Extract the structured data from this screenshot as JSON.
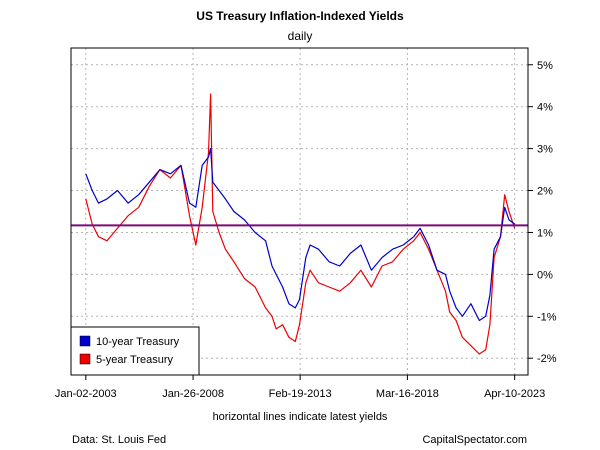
{
  "chart_data": {
    "type": "line",
    "title": "US Treasury Inflation-Indexed Yields",
    "subtitle": "daily",
    "xlabel": "horizontal lines indicate latest yields",
    "ylabel": "",
    "x_tick_labels": [
      "Jan-02-2003",
      "Jan-26-2008",
      "Feb-19-2013",
      "Mar-16-2018",
      "Apr-10-2023"
    ],
    "x_tick_values": [
      2003.0,
      2008.07,
      2013.13,
      2018.2,
      2023.27
    ],
    "xlim": [
      2002.3,
      2023.9
    ],
    "y_tick_labels": [
      "-2%",
      "-1%",
      "0%",
      "1%",
      "2%",
      "3%",
      "4%",
      "5%"
    ],
    "y_tick_values": [
      -2,
      -1,
      0,
      1,
      2,
      3,
      4,
      5
    ],
    "ylim": [
      -2.4,
      5.4
    ],
    "grid": true,
    "legend_position": "bottom-left",
    "series": [
      {
        "name": "10-year Treasury",
        "color": "#0000cc",
        "x": [
          2003.0,
          2003.3,
          2003.6,
          2004.0,
          2004.5,
          2005.0,
          2005.5,
          2006.0,
          2006.5,
          2007.0,
          2007.5,
          2007.9,
          2008.2,
          2008.5,
          2008.8,
          2008.9,
          2009.0,
          2009.3,
          2009.6,
          2010.0,
          2010.5,
          2011.0,
          2011.5,
          2011.8,
          2012.0,
          2012.3,
          2012.6,
          2012.9,
          2013.1,
          2013.4,
          2013.6,
          2014.0,
          2014.5,
          2015.0,
          2015.5,
          2016.0,
          2016.5,
          2017.0,
          2017.5,
          2018.0,
          2018.5,
          2018.8,
          2019.2,
          2019.6,
          2020.0,
          2020.2,
          2020.5,
          2020.8,
          2021.2,
          2021.6,
          2021.9,
          2022.1,
          2022.3,
          2022.6,
          2022.8,
          2023.0,
          2023.27
        ],
        "y": [
          2.4,
          2.0,
          1.7,
          1.8,
          2.0,
          1.7,
          1.9,
          2.2,
          2.5,
          2.4,
          2.6,
          1.7,
          1.6,
          2.6,
          2.8,
          3.0,
          2.2,
          2.0,
          1.8,
          1.5,
          1.3,
          1.0,
          0.8,
          0.2,
          0.0,
          -0.3,
          -0.7,
          -0.8,
          -0.6,
          0.4,
          0.7,
          0.6,
          0.3,
          0.2,
          0.5,
          0.7,
          0.1,
          0.4,
          0.6,
          0.7,
          0.9,
          1.1,
          0.7,
          0.1,
          0.0,
          -0.4,
          -0.8,
          -1.0,
          -0.7,
          -1.1,
          -1.0,
          -0.5,
          0.6,
          0.9,
          1.6,
          1.3,
          1.2
        ]
      },
      {
        "name": "5-year Treasury",
        "color": "#ee0000",
        "x": [
          2003.0,
          2003.3,
          2003.6,
          2004.0,
          2004.5,
          2005.0,
          2005.5,
          2006.0,
          2006.5,
          2007.0,
          2007.5,
          2007.9,
          2008.2,
          2008.5,
          2008.8,
          2008.9,
          2009.0,
          2009.3,
          2009.6,
          2010.0,
          2010.5,
          2011.0,
          2011.5,
          2011.8,
          2012.0,
          2012.3,
          2012.6,
          2012.9,
          2013.1,
          2013.4,
          2013.6,
          2014.0,
          2014.5,
          2015.0,
          2015.5,
          2016.0,
          2016.5,
          2017.0,
          2017.5,
          2018.0,
          2018.5,
          2018.8,
          2019.2,
          2019.6,
          2020.0,
          2020.2,
          2020.5,
          2020.8,
          2021.2,
          2021.6,
          2021.9,
          2022.1,
          2022.3,
          2022.6,
          2022.8,
          2023.0,
          2023.27
        ],
        "y": [
          1.8,
          1.2,
          0.9,
          0.8,
          1.1,
          1.4,
          1.6,
          2.1,
          2.5,
          2.3,
          2.6,
          1.4,
          0.7,
          1.6,
          2.9,
          4.3,
          1.5,
          1.0,
          0.6,
          0.3,
          -0.1,
          -0.3,
          -0.8,
          -1.0,
          -1.3,
          -1.2,
          -1.5,
          -1.6,
          -1.2,
          -0.2,
          0.1,
          -0.2,
          -0.3,
          -0.4,
          -0.2,
          0.1,
          -0.3,
          0.2,
          0.3,
          0.6,
          0.8,
          1.0,
          0.6,
          0.1,
          -0.4,
          -0.9,
          -1.1,
          -1.5,
          -1.7,
          -1.9,
          -1.8,
          -1.2,
          0.4,
          0.9,
          1.9,
          1.5,
          1.1
        ]
      }
    ],
    "reference_lines": [
      {
        "y": 1.17,
        "color": "#7b0a7b"
      }
    ]
  },
  "footer": {
    "source": "Data: St. Louis Fed",
    "credit": "CapitalSpectator.com"
  }
}
